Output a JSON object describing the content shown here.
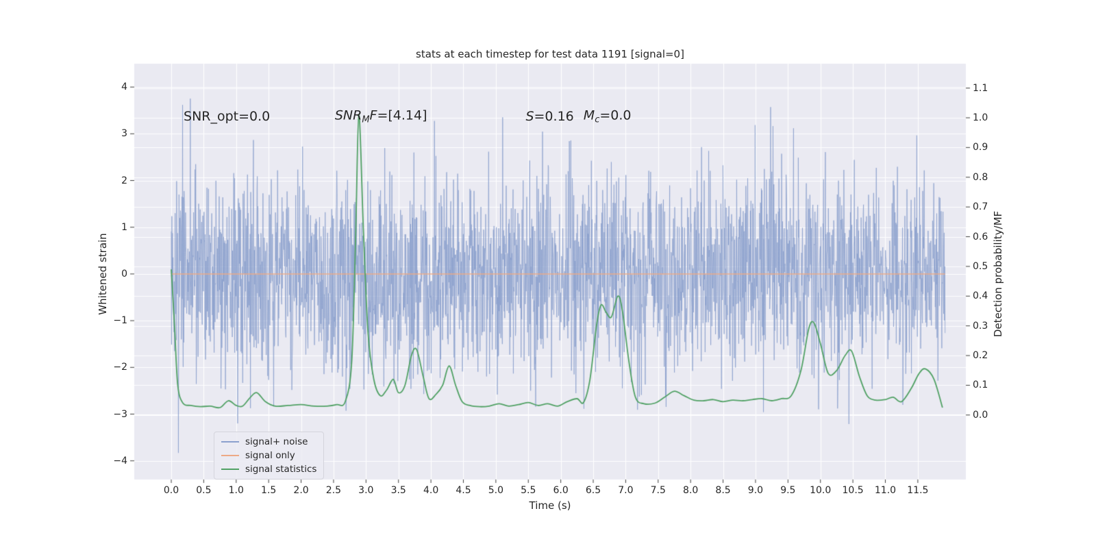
{
  "chart_data": {
    "type": "line",
    "title": "stats at each timestep for test data 1191 [signal=0]",
    "xlabel": "Time (s)",
    "ylabel_left": "Whitened strain",
    "ylabel_right": "Detection probability/MF",
    "background": "#eaeaf2",
    "grid_color": "#ffffff",
    "text_color": "#262626",
    "tick_color": "#262626",
    "xlim": [
      -0.57,
      12.24
    ],
    "ylim_left": [
      -4.4,
      4.5
    ],
    "ylim_right": [
      -0.217,
      1.182
    ],
    "x_ticks": [
      0.0,
      0.5,
      1.0,
      1.5,
      2.0,
      2.5,
      3.0,
      3.5,
      4.0,
      4.5,
      5.0,
      5.5,
      6.0,
      6.5,
      7.0,
      7.5,
      8.0,
      8.5,
      9.0,
      9.5,
      10.0,
      10.5,
      11.0,
      11.5
    ],
    "x_tick_labels": [
      "0.0",
      "0.5",
      "1.0",
      "1.5",
      "2.0",
      "2.5",
      "3.0",
      "3.5",
      "4.0",
      "4.5",
      "5.0",
      "5.5",
      "6.0",
      "6.5",
      "7.0",
      "7.5",
      "8.0",
      "8.5",
      "9.0",
      "9.5",
      "10.0",
      "10.5",
      "11.0",
      "11.5"
    ],
    "y_ticks_left": [
      -4,
      -3,
      -2,
      -1,
      0,
      1,
      2,
      3,
      4
    ],
    "y_tick_labels_left": [
      "−4",
      "−3",
      "−2",
      "−1",
      "0",
      "1",
      "2",
      "3",
      "4"
    ],
    "y_ticks_right": [
      0.0,
      0.1,
      0.2,
      0.3,
      0.4,
      0.5,
      0.6,
      0.7,
      0.8,
      0.9,
      1.0,
      1.1
    ],
    "y_tick_labels_right": [
      "0.0",
      "0.1",
      "0.2",
      "0.3",
      "0.4",
      "0.5",
      "0.6",
      "0.7",
      "0.8",
      "0.9",
      "1.0",
      "1.1"
    ],
    "grid": true,
    "legend_position": "lower left",
    "series": [
      {
        "name": "signal+ noise",
        "color": "#8ba0cd",
        "alpha": 0.8,
        "axis": "left",
        "type": "gaussian_noise",
        "x_start": 0.0,
        "x_end": 11.92,
        "n": 2600,
        "mean": 0.0,
        "std": 1.05,
        "clip": 4.15,
        "seed": 1191
      },
      {
        "name": "signal only",
        "color": "#eda985",
        "alpha": 0.95,
        "axis": "left",
        "type": "constant",
        "value": 0.0,
        "x_start": 0.0,
        "x_end": 11.92
      },
      {
        "name": "signal statistics",
        "color": "#50a164",
        "alpha": 1.0,
        "axis": "right",
        "type": "curve",
        "points": [
          [
            0.0,
            0.49
          ],
          [
            0.05,
            0.3
          ],
          [
            0.1,
            0.1
          ],
          [
            0.18,
            0.04
          ],
          [
            0.3,
            0.032
          ],
          [
            0.45,
            0.028
          ],
          [
            0.6,
            0.03
          ],
          [
            0.75,
            0.025
          ],
          [
            0.88,
            0.048
          ],
          [
            1.0,
            0.032
          ],
          [
            1.1,
            0.03
          ],
          [
            1.22,
            0.06
          ],
          [
            1.32,
            0.075
          ],
          [
            1.45,
            0.045
          ],
          [
            1.6,
            0.03
          ],
          [
            1.8,
            0.032
          ],
          [
            2.0,
            0.035
          ],
          [
            2.2,
            0.03
          ],
          [
            2.4,
            0.03
          ],
          [
            2.55,
            0.035
          ],
          [
            2.68,
            0.045
          ],
          [
            2.78,
            0.18
          ],
          [
            2.84,
            0.6
          ],
          [
            2.89,
            1.01
          ],
          [
            2.96,
            0.62
          ],
          [
            3.03,
            0.28
          ],
          [
            3.12,
            0.12
          ],
          [
            3.22,
            0.065
          ],
          [
            3.32,
            0.085
          ],
          [
            3.42,
            0.12
          ],
          [
            3.5,
            0.075
          ],
          [
            3.6,
            0.1
          ],
          [
            3.7,
            0.2
          ],
          [
            3.78,
            0.22
          ],
          [
            3.88,
            0.13
          ],
          [
            3.97,
            0.055
          ],
          [
            4.08,
            0.07
          ],
          [
            4.18,
            0.1
          ],
          [
            4.28,
            0.165
          ],
          [
            4.38,
            0.1
          ],
          [
            4.48,
            0.045
          ],
          [
            4.6,
            0.032
          ],
          [
            4.75,
            0.028
          ],
          [
            4.9,
            0.03
          ],
          [
            5.05,
            0.038
          ],
          [
            5.2,
            0.03
          ],
          [
            5.35,
            0.035
          ],
          [
            5.5,
            0.042
          ],
          [
            5.65,
            0.032
          ],
          [
            5.8,
            0.038
          ],
          [
            5.95,
            0.03
          ],
          [
            6.1,
            0.045
          ],
          [
            6.25,
            0.055
          ],
          [
            6.35,
            0.042
          ],
          [
            6.45,
            0.12
          ],
          [
            6.55,
            0.3
          ],
          [
            6.62,
            0.37
          ],
          [
            6.7,
            0.345
          ],
          [
            6.78,
            0.33
          ],
          [
            6.88,
            0.4
          ],
          [
            6.95,
            0.35
          ],
          [
            7.05,
            0.18
          ],
          [
            7.15,
            0.06
          ],
          [
            7.28,
            0.038
          ],
          [
            7.45,
            0.04
          ],
          [
            7.6,
            0.06
          ],
          [
            7.75,
            0.08
          ],
          [
            7.9,
            0.065
          ],
          [
            8.05,
            0.05
          ],
          [
            8.2,
            0.048
          ],
          [
            8.35,
            0.052
          ],
          [
            8.5,
            0.045
          ],
          [
            8.65,
            0.05
          ],
          [
            8.8,
            0.048
          ],
          [
            8.95,
            0.052
          ],
          [
            9.1,
            0.055
          ],
          [
            9.25,
            0.048
          ],
          [
            9.4,
            0.055
          ],
          [
            9.55,
            0.065
          ],
          [
            9.7,
            0.15
          ],
          [
            9.82,
            0.29
          ],
          [
            9.9,
            0.31
          ],
          [
            10.0,
            0.24
          ],
          [
            10.12,
            0.14
          ],
          [
            10.25,
            0.15
          ],
          [
            10.38,
            0.2
          ],
          [
            10.48,
            0.215
          ],
          [
            10.6,
            0.13
          ],
          [
            10.72,
            0.065
          ],
          [
            10.85,
            0.05
          ],
          [
            11.0,
            0.052
          ],
          [
            11.12,
            0.06
          ],
          [
            11.25,
            0.045
          ],
          [
            11.4,
            0.09
          ],
          [
            11.52,
            0.14
          ],
          [
            11.62,
            0.155
          ],
          [
            11.75,
            0.12
          ],
          [
            11.88,
            0.025
          ]
        ]
      }
    ],
    "annotations": [
      {
        "x": 0.19,
        "y": 3.37,
        "parts": [
          {
            "t": "SNR_opt=0.0",
            "s": "n"
          }
        ]
      },
      {
        "x": 2.52,
        "y": 3.37,
        "parts": [
          {
            "t": "SNR",
            "s": "i"
          },
          {
            "t": "M",
            "s": "sub"
          },
          {
            "t": "F",
            "s": "i"
          },
          {
            "t": "=[4.14]",
            "s": "n"
          }
        ]
      },
      {
        "x": 5.46,
        "y": 3.37,
        "parts": [
          {
            "t": "S",
            "s": "i"
          },
          {
            "t": "=0.16",
            "s": "n"
          }
        ]
      },
      {
        "x": 6.35,
        "y": 3.37,
        "parts": [
          {
            "t": "M",
            "s": "i"
          },
          {
            "t": "c",
            "s": "sub"
          },
          {
            "t": "=0.0",
            "s": "n"
          }
        ]
      }
    ],
    "legend": {
      "items": [
        "signal+ noise",
        "signal only",
        "signal statistics"
      ]
    }
  }
}
